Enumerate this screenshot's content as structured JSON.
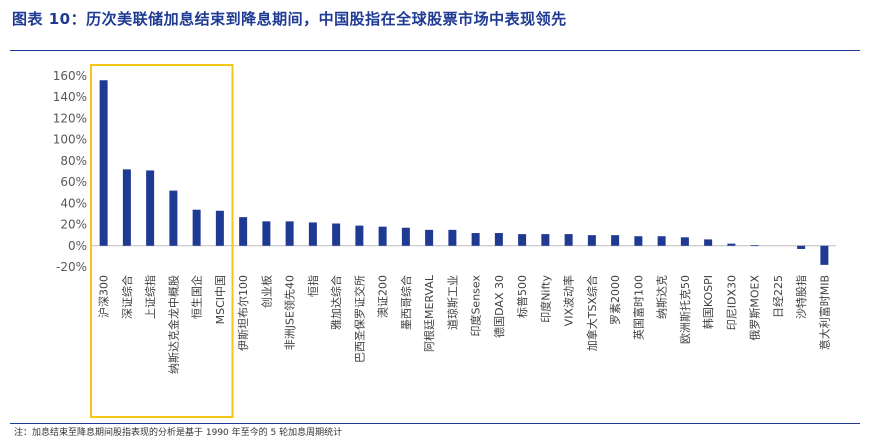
{
  "title": "图表 10：历次美联储加息结束到降息期间，中国股指在全球股票市场中表现领先",
  "footnote": "注：加息结束至降息期间股指表现的分析是基于 1990 年至今的 5 轮加息周期统计",
  "chart_data": {
    "type": "bar",
    "title": "",
    "xlabel": "",
    "ylabel": "",
    "ylim": [
      -20,
      160
    ],
    "yticks": [
      -20,
      0,
      20,
      40,
      60,
      80,
      100,
      120,
      140,
      160
    ],
    "ytick_labels": [
      "-20%",
      "0%",
      "20%",
      "40%",
      "60%",
      "80%",
      "100%",
      "120%",
      "140%",
      "160%"
    ],
    "grid": false,
    "bar_color": "#1f3a93",
    "highlight_color": "#f5c518",
    "highlight_range": [
      0,
      5
    ],
    "categories": [
      "沪深300",
      "深证综合",
      "上证综指",
      "纳斯达克金龙中概股",
      "恒生国企",
      "MSCI中国",
      "伊斯坦布尔100",
      "创业板",
      "非洲JSE领先40",
      "恒指",
      "雅加达综合",
      "巴西圣保罗证交所",
      "澳证200",
      "墨西哥综合",
      "阿根廷MERVAL",
      "道琼斯工业",
      "印度Sensex",
      "德国DAX 30",
      "标普500",
      "印度Nifty",
      "VIX波动率",
      "加拿大TSX综合",
      "罗素2000",
      "英国富时100",
      "纳斯达克",
      "欧洲斯托克50",
      "韩国KOSPI",
      "印尼IDX30",
      "俄罗斯MOEX",
      "日经225",
      "沙特股指",
      "意大利富时MIB"
    ],
    "values": [
      156,
      72,
      71,
      52,
      34,
      33,
      27,
      23,
      23,
      22,
      21,
      19,
      18,
      17,
      15,
      15,
      12,
      12,
      11,
      11,
      11,
      10,
      10,
      9,
      9,
      8,
      6,
      2,
      0.5,
      0,
      -3,
      -18
    ]
  }
}
